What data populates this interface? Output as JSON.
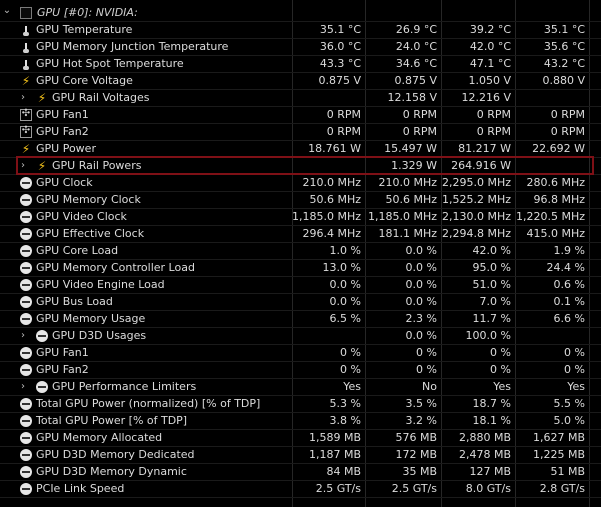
{
  "header": {
    "label": "GPU [#0]: NVIDIA:"
  },
  "rows": [
    {
      "label": "GPU Temperature",
      "icon": "thermometer-icon",
      "cur": "35.1 °C",
      "min": "26.9 °C",
      "max": "39.2 °C",
      "avg": "35.1 °C"
    },
    {
      "label": "GPU Memory Junction Temperature",
      "icon": "thermometer-icon",
      "cur": "36.0 °C",
      "min": "24.0 °C",
      "max": "42.0 °C",
      "avg": "35.6 °C"
    },
    {
      "label": "GPU Hot Spot Temperature",
      "icon": "thermometer-icon",
      "cur": "43.3 °C",
      "min": "34.6 °C",
      "max": "47.1 °C",
      "avg": "43.2 °C"
    },
    {
      "label": "GPU Core Voltage",
      "icon": "lightning-icon",
      "cur": "0.875 V",
      "min": "0.875 V",
      "max": "1.050 V",
      "avg": "0.880 V"
    },
    {
      "label": "GPU Rail Voltages",
      "icon": "lightning-icon",
      "expandable": true,
      "cur": "",
      "min": "12.158 V",
      "max": "12.216 V",
      "avg": ""
    },
    {
      "label": "GPU Fan1",
      "icon": "fan-icon",
      "cur": "0 RPM",
      "min": "0 RPM",
      "max": "0 RPM",
      "avg": "0 RPM"
    },
    {
      "label": "GPU Fan2",
      "icon": "fan-icon",
      "cur": "0 RPM",
      "min": "0 RPM",
      "max": "0 RPM",
      "avg": "0 RPM"
    },
    {
      "label": "GPU Power",
      "icon": "lightning-icon",
      "cur": "18.761 W",
      "min": "15.497 W",
      "max": "81.217 W",
      "avg": "22.692 W"
    },
    {
      "label": "GPU Rail Powers",
      "icon": "lightning-icon",
      "expandable": true,
      "highlighted": true,
      "cur": "",
      "min": "1.329 W",
      "max": "264.916 W",
      "avg": ""
    },
    {
      "label": "GPU Clock",
      "icon": "clock-icon",
      "cur": "210.0 MHz",
      "min": "210.0 MHz",
      "max": "2,295.0 MHz",
      "avg": "280.6 MHz"
    },
    {
      "label": "GPU Memory Clock",
      "icon": "clock-icon",
      "cur": "50.6 MHz",
      "min": "50.6 MHz",
      "max": "1,525.2 MHz",
      "avg": "96.8 MHz"
    },
    {
      "label": "GPU Video Clock",
      "icon": "clock-icon",
      "cur": "1,185.0 MHz",
      "min": "1,185.0 MHz",
      "max": "2,130.0 MHz",
      "avg": "1,220.5 MHz"
    },
    {
      "label": "GPU Effective Clock",
      "icon": "clock-icon",
      "cur": "296.4 MHz",
      "min": "181.1 MHz",
      "max": "2,294.8 MHz",
      "avg": "415.0 MHz"
    },
    {
      "label": "GPU Core Load",
      "icon": "clock-icon",
      "cur": "1.0 %",
      "min": "0.0 %",
      "max": "42.0 %",
      "avg": "1.9 %"
    },
    {
      "label": "GPU Memory Controller Load",
      "icon": "clock-icon",
      "cur": "13.0 %",
      "min": "0.0 %",
      "max": "95.0 %",
      "avg": "24.4 %"
    },
    {
      "label": "GPU Video Engine Load",
      "icon": "clock-icon",
      "cur": "0.0 %",
      "min": "0.0 %",
      "max": "51.0 %",
      "avg": "0.6 %"
    },
    {
      "label": "GPU Bus Load",
      "icon": "clock-icon",
      "cur": "0.0 %",
      "min": "0.0 %",
      "max": "7.0 %",
      "avg": "0.1 %"
    },
    {
      "label": "GPU Memory Usage",
      "icon": "clock-icon",
      "cur": "6.5 %",
      "min": "2.3 %",
      "max": "11.7 %",
      "avg": "6.6 %"
    },
    {
      "label": "GPU D3D Usages",
      "icon": "clock-icon",
      "expandable": true,
      "cur": "",
      "min": "0.0 %",
      "max": "100.0 %",
      "avg": ""
    },
    {
      "label": "GPU Fan1",
      "icon": "clock-icon",
      "cur": "0 %",
      "min": "0 %",
      "max": "0 %",
      "avg": "0 %"
    },
    {
      "label": "GPU Fan2",
      "icon": "clock-icon",
      "cur": "0 %",
      "min": "0 %",
      "max": "0 %",
      "avg": "0 %"
    },
    {
      "label": "GPU Performance Limiters",
      "icon": "clock-icon",
      "expandable": true,
      "cur": "Yes",
      "min": "No",
      "max": "Yes",
      "avg": "Yes"
    },
    {
      "label": "Total GPU Power (normalized) [% of TDP]",
      "icon": "clock-icon",
      "cur": "5.3 %",
      "min": "3.5 %",
      "max": "18.7 %",
      "avg": "5.5 %"
    },
    {
      "label": "Total GPU Power [% of TDP]",
      "icon": "clock-icon",
      "cur": "3.8 %",
      "min": "3.2 %",
      "max": "18.1 %",
      "avg": "5.0 %"
    },
    {
      "label": "GPU Memory Allocated",
      "icon": "clock-icon",
      "cur": "1,589 MB",
      "min": "576 MB",
      "max": "2,880 MB",
      "avg": "1,627 MB"
    },
    {
      "label": "GPU D3D Memory Dedicated",
      "icon": "clock-icon",
      "cur": "1,187 MB",
      "min": "172 MB",
      "max": "2,478 MB",
      "avg": "1,225 MB"
    },
    {
      "label": "GPU D3D Memory Dynamic",
      "icon": "clock-icon",
      "cur": "84 MB",
      "min": "35 MB",
      "max": "127 MB",
      "avg": "51 MB"
    },
    {
      "label": "PCIe Link Speed",
      "icon": "clock-icon",
      "cur": "2.5 GT/s",
      "min": "2.5 GT/s",
      "max": "8.0 GT/s",
      "avg": "2.8 GT/s"
    }
  ]
}
